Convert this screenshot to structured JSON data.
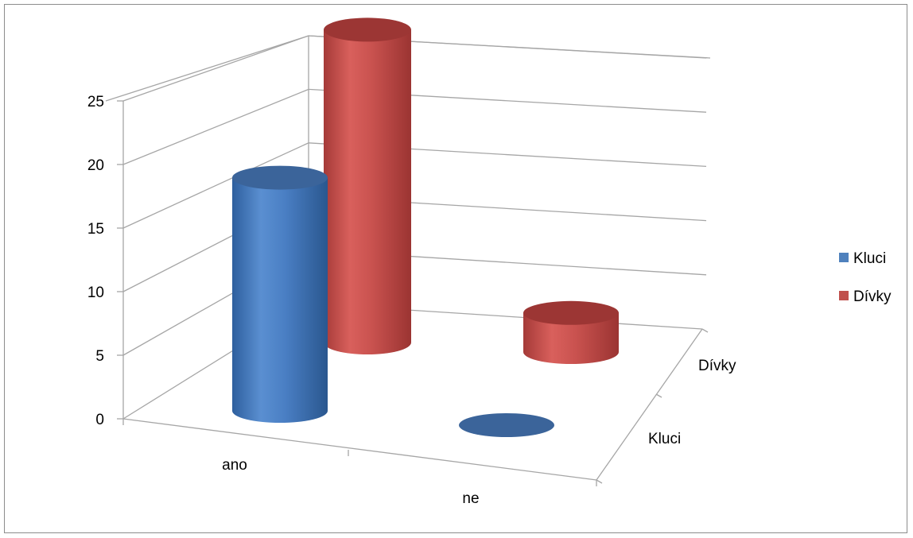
{
  "chart_data": {
    "type": "bar",
    "subtype": "3d-cylinder",
    "categories": [
      "ano",
      "ne"
    ],
    "depth_categories": [
      "Kluci",
      "Dívky"
    ],
    "series": [
      {
        "name": "Kluci",
        "color": "#4f81bd",
        "values": [
          18,
          0
        ]
      },
      {
        "name": "Dívky",
        "color": "#c0504d",
        "values": [
          24,
          3
        ]
      }
    ],
    "y_ticks": [
      "0",
      "5",
      "10",
      "15",
      "20",
      "25"
    ],
    "ylim": [
      0,
      25
    ],
    "title": "",
    "xlabel": "",
    "ylabel": "",
    "grid": true,
    "legend_position": "right"
  }
}
